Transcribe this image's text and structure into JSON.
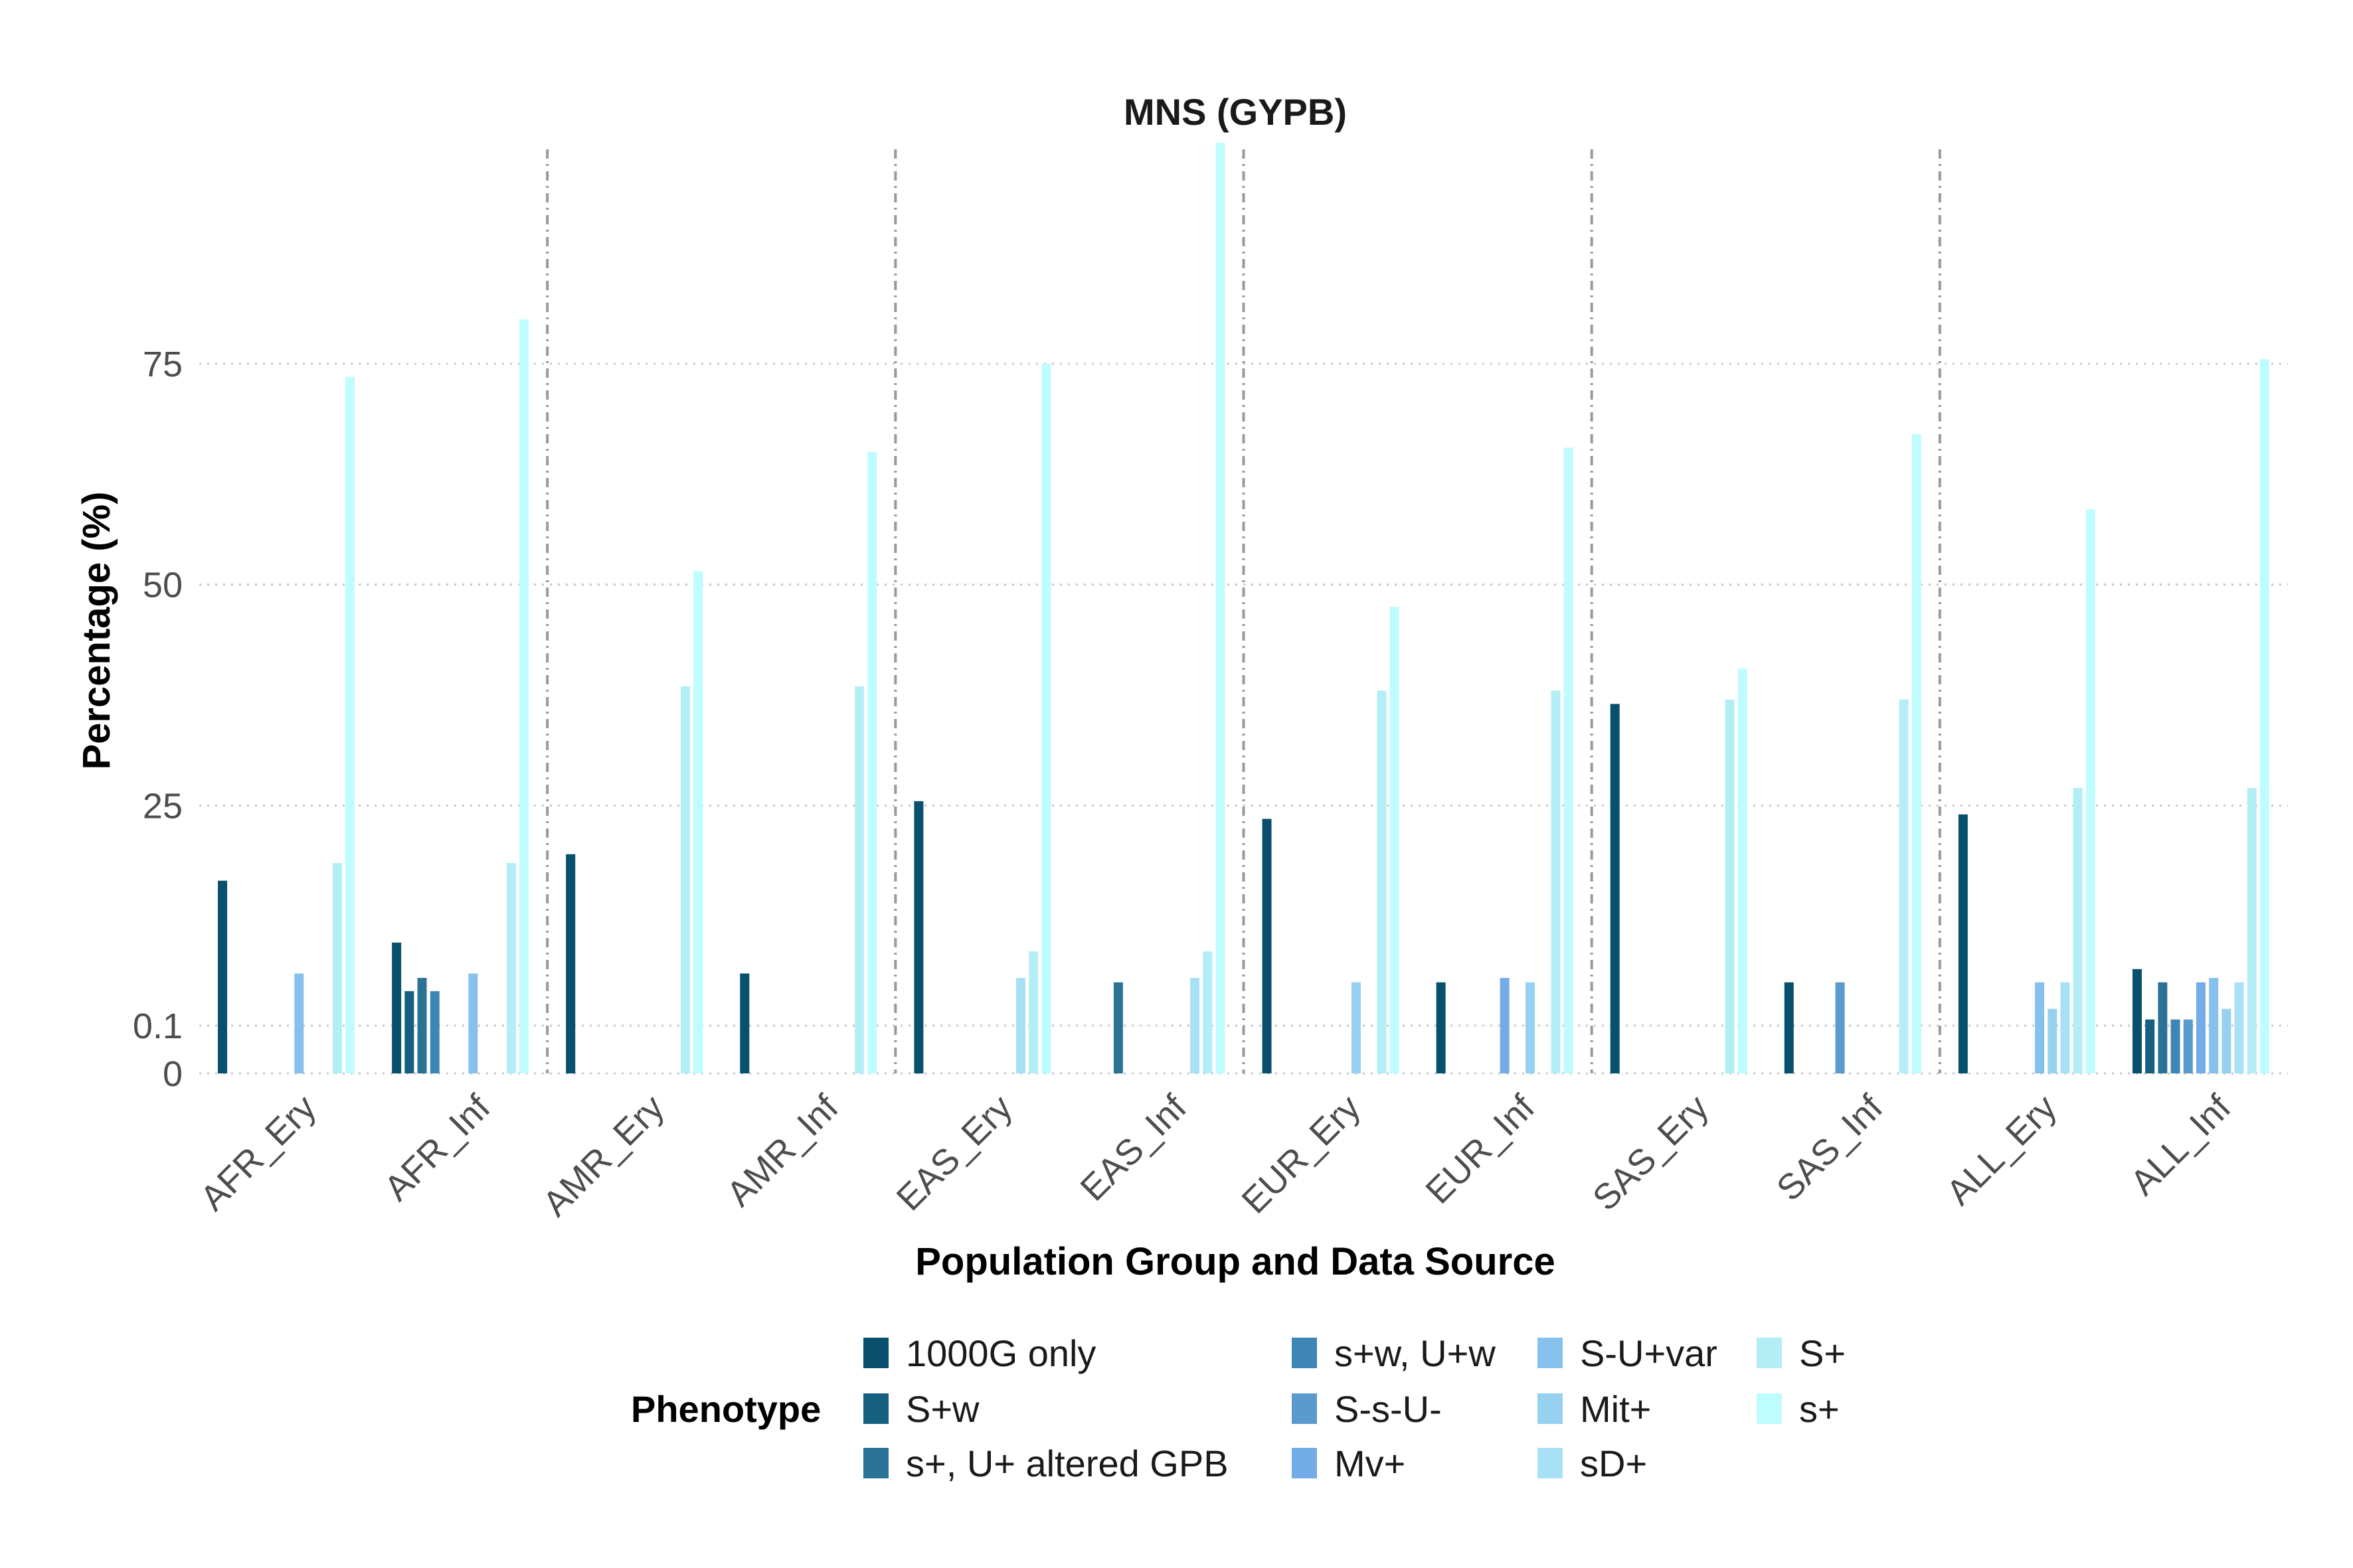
{
  "chart_data": {
    "type": "bar",
    "title": "MNS (GYPB)",
    "xlabel": "Population Group and Data Source",
    "ylabel": "Percentage (%)",
    "yticks": [
      {
        "value": 0,
        "label": "0"
      },
      {
        "value": 0.1,
        "label": "0.1"
      },
      {
        "value": 25,
        "label": "25"
      },
      {
        "value": 50,
        "label": "50"
      },
      {
        "value": 75,
        "label": "75"
      }
    ],
    "scale_note": "piecewise y axis: 0 to 0.1 expanded, then linear 0.1 to 100",
    "ylim": [
      0,
      100
    ],
    "grid": true,
    "group_separators": true,
    "legend_title": "Phenotype",
    "legend_position": "bottom",
    "categories": [
      "AFR_Ery",
      "AFR_Inf",
      "AMR_Ery",
      "AMR_Inf",
      "EAS_Ery",
      "EAS_Inf",
      "EUR_Ery",
      "EUR_Inf",
      "SAS_Ery",
      "SAS_Inf",
      "ALL_Ery",
      "ALL_Inf"
    ],
    "series": [
      {
        "name": "1000G only",
        "color": "#08506E",
        "values": [
          16.5,
          9.5,
          19.5,
          6,
          25.5,
          0,
          23.5,
          5,
          36.5,
          5,
          24,
          6.5
        ]
      },
      {
        "name": "S+w",
        "color": "#155F80",
        "values": [
          0,
          4,
          0,
          0,
          0,
          0,
          0,
          0,
          0,
          0,
          0,
          0.8
        ]
      },
      {
        "name": "s+, U+ altered GPB",
        "color": "#2B7396",
        "values": [
          0,
          5.5,
          0,
          0,
          0,
          5,
          0,
          0,
          0,
          0,
          0,
          5
        ]
      },
      {
        "name": "s+w, U+w",
        "color": "#3D86B5",
        "values": [
          0,
          4,
          0,
          0,
          0,
          0,
          0,
          0,
          0,
          0,
          0,
          0.8
        ]
      },
      {
        "name": "S-s-U-",
        "color": "#5A9ACC",
        "values": [
          0,
          0,
          0,
          0,
          0,
          0,
          0,
          0,
          0,
          5,
          0,
          0.8
        ]
      },
      {
        "name": "Mv+",
        "color": "#73ACE6",
        "values": [
          0,
          0,
          0,
          0,
          0,
          0,
          0,
          5.5,
          0,
          0,
          0,
          5
        ]
      },
      {
        "name": "S-U+var",
        "color": "#86C1EE",
        "values": [
          6,
          6,
          0,
          0,
          0,
          0,
          0,
          0,
          0,
          0,
          5,
          5.5
        ]
      },
      {
        "name": "Mit+",
        "color": "#96D1F0",
        "values": [
          0,
          0,
          0,
          0,
          0,
          0,
          5,
          5,
          0,
          0,
          2,
          2
        ]
      },
      {
        "name": "sD+",
        "color": "#A8E0F5",
        "values": [
          0,
          0,
          0,
          0,
          5.5,
          5.5,
          0,
          0,
          0,
          0,
          5,
          5
        ]
      },
      {
        "name": "S+",
        "color": "#B3EEF6",
        "values": [
          18.5,
          18.5,
          38.5,
          38.5,
          8.5,
          8.5,
          38,
          38,
          37,
          37,
          27,
          27
        ]
      },
      {
        "name": "s+",
        "color": "#BFFCFF",
        "values": [
          73.5,
          80,
          51.5,
          65,
          75,
          100,
          47.5,
          65.5,
          40.5,
          67,
          58.5,
          75.5
        ]
      }
    ]
  }
}
